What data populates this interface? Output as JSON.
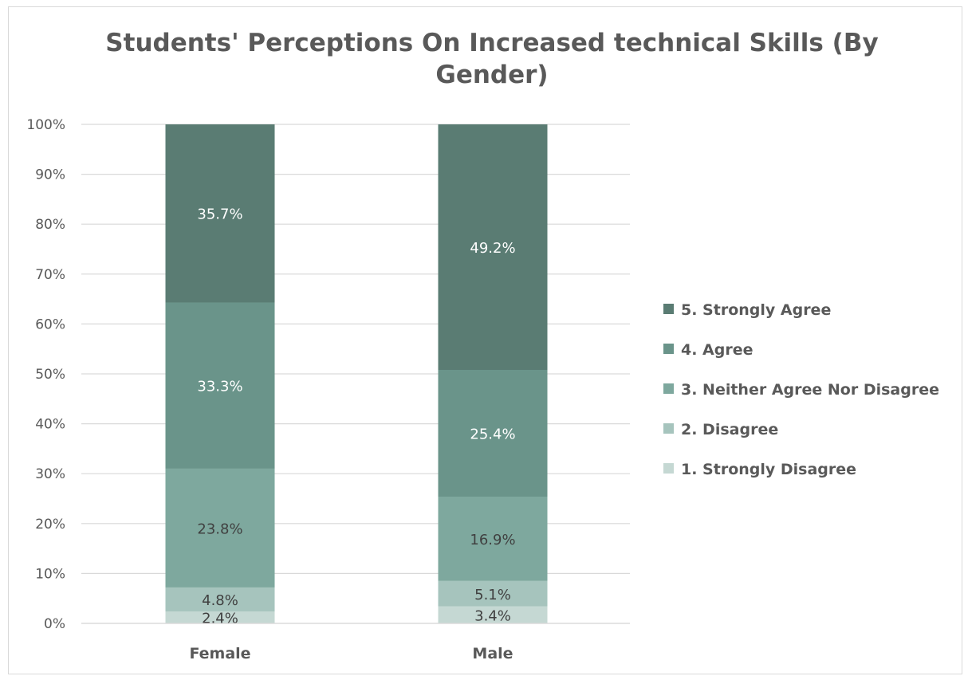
{
  "chart_data": {
    "type": "bar",
    "stacked": true,
    "percent_stacked": true,
    "title_lines": [
      "Students' Perceptions On Increased technical Skills (By",
      "Gender)"
    ],
    "title": "Students' Perceptions On Increased technical Skills (By Gender)",
    "categories": [
      "Female",
      "Male"
    ],
    "ylim": [
      0,
      100
    ],
    "yticks": [
      "0%",
      "10%",
      "20%",
      "30%",
      "40%",
      "50%",
      "60%",
      "70%",
      "80%",
      "90%",
      "100%"
    ],
    "grid": true,
    "legend_position": "right",
    "series": [
      {
        "name": "1. Strongly Disagree",
        "values": [
          2.4,
          3.4
        ],
        "labels": [
          "2.4%",
          "3.4%"
        ],
        "color": "#c5d8d3",
        "label_color": "#404040"
      },
      {
        "name": "2. Disagree",
        "values": [
          4.8,
          5.1
        ],
        "labels": [
          "4.8%",
          "5.1%"
        ],
        "color": "#a6c4bd",
        "label_color": "#404040"
      },
      {
        "name": "3. Neither Agree Nor Disagree",
        "values": [
          23.8,
          16.9
        ],
        "labels": [
          "23.8%",
          "16.9%"
        ],
        "color": "#7ea89e",
        "label_color": "#404040"
      },
      {
        "name": "4. Agree",
        "values": [
          33.3,
          25.4
        ],
        "labels": [
          "33.3%",
          "25.4%"
        ],
        "color": "#6a948a",
        "label_color": "#ffffff"
      },
      {
        "name": "5. Strongly Agree",
        "values": [
          35.7,
          49.2
        ],
        "labels": [
          "35.7%",
          "49.2%"
        ],
        "color": "#5a7c73",
        "label_color": "#ffffff"
      }
    ]
  }
}
